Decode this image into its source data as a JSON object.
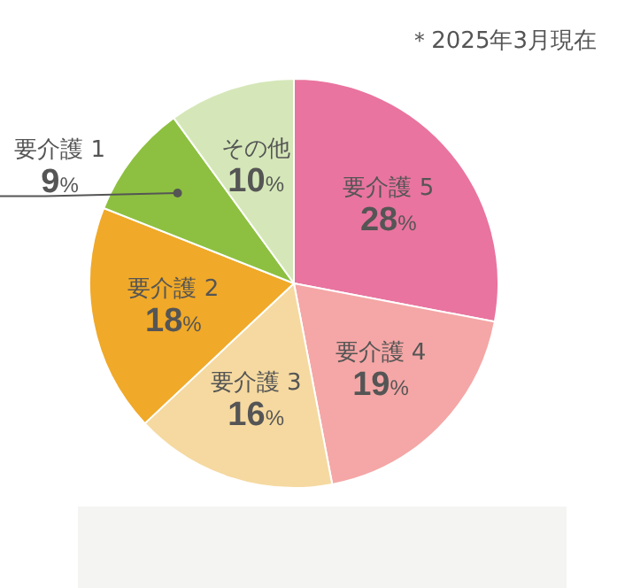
{
  "chart_data": {
    "type": "pie",
    "categories": [
      "要介護 5",
      "要介護 4",
      "要介護 3",
      "要介護 2",
      "要介護 1",
      "その他"
    ],
    "values": [
      28,
      19,
      16,
      18,
      9,
      10
    ],
    "colors": [
      "#e9749f",
      "#f4a7a6",
      "#f5d9a0",
      "#f0a928",
      "#8dc040",
      "#d5e7b8"
    ],
    "value_labels": [
      "28%",
      "19%",
      "16%",
      "18%",
      "9%",
      "10%"
    ],
    "annotations": [
      "＊2025年3月現在"
    ]
  }
}
